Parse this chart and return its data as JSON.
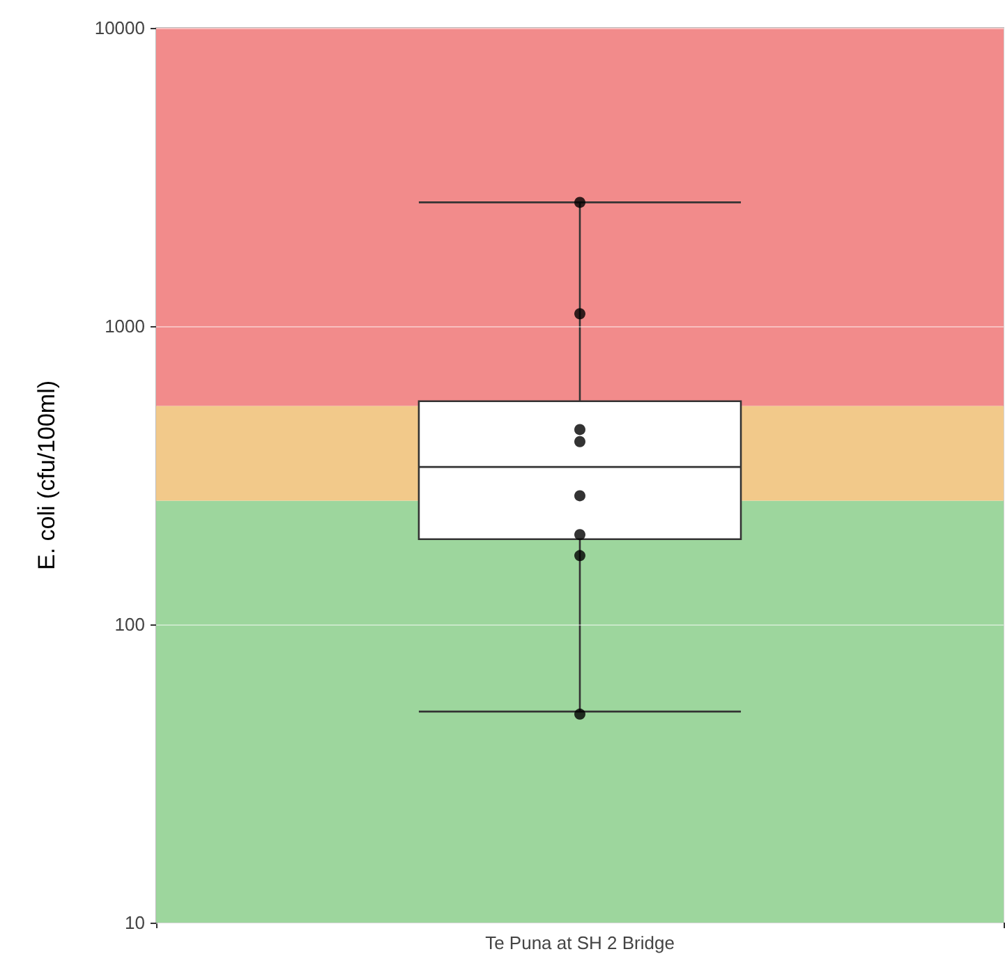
{
  "chart_data": {
    "type": "box",
    "ylabel": "E. coli (cfu/100ml)",
    "categories": [
      "Te Puna at SH 2 Bridge"
    ],
    "boxes": [
      {
        "low": 51,
        "q1": 193,
        "median": 337,
        "q3": 560,
        "high": 2600
      }
    ],
    "series": [
      {
        "type": "scatter",
        "x": [
          "Te Puna at SH 2 Bridge",
          "Te Puna at SH 2 Bridge",
          "Te Puna at SH 2 Bridge",
          "Te Puna at SH 2 Bridge",
          "Te Puna at SH 2 Bridge",
          "Te Puna at SH 2 Bridge",
          "Te Puna at SH 2 Bridge",
          "Te Puna at SH 2 Bridge"
        ],
        "values": [
          2600,
          1100,
          450,
          410,
          270,
          200,
          170,
          50
        ],
        "color": "#000000"
      }
    ],
    "log": "y",
    "ylim": [
      10,
      10000
    ],
    "yticks": [
      10,
      100,
      1000,
      10000
    ],
    "grid": true,
    "bands": [
      {
        "axis": "y",
        "from": 10,
        "to": 260,
        "color": "#9dd69d"
      },
      {
        "axis": "y",
        "from": 260,
        "to": 540,
        "color": "#f2c98a"
      },
      {
        "axis": "y",
        "from": 540,
        "to": 10000,
        "color": "#f28b8b"
      }
    ]
  }
}
